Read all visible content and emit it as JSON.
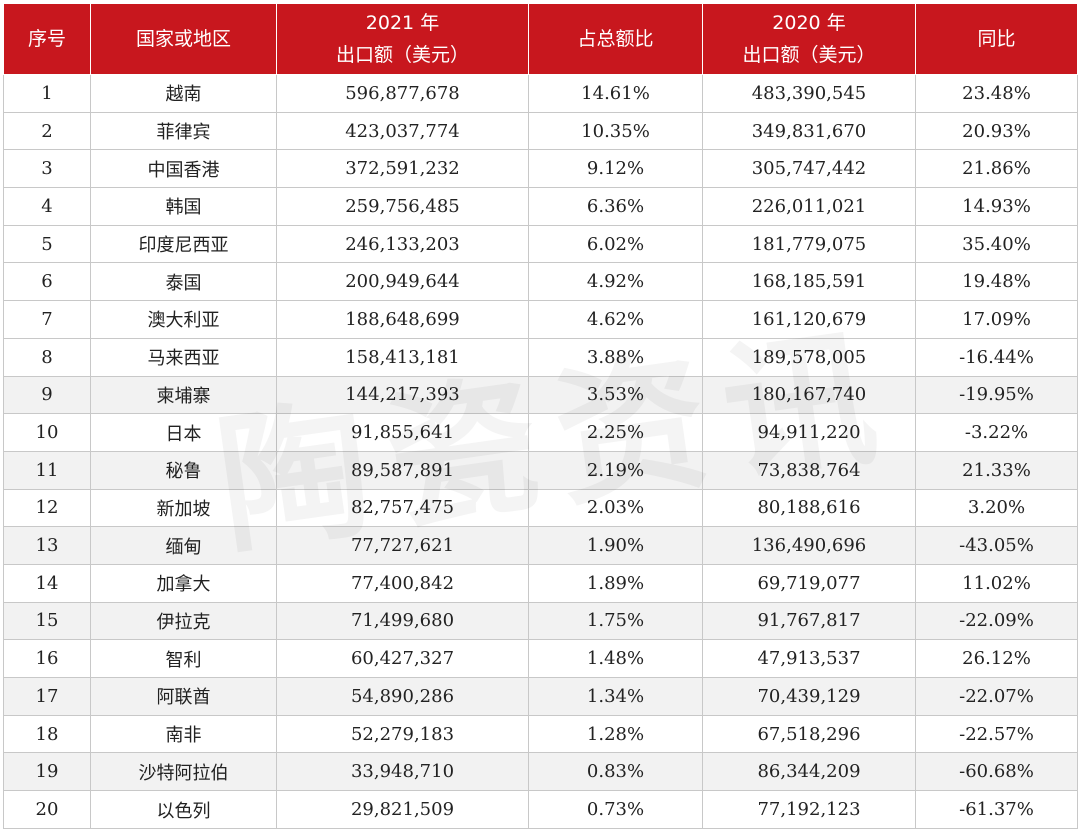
{
  "header": {
    "rank": "序号",
    "country": "国家或地区",
    "export2021_line1": "2021 年",
    "export2021_line2": "出口额（美元）",
    "share": "占总额比",
    "export2020_line1": "2020 年",
    "export2020_line2": "出口额（美元）",
    "yoy": "同比"
  },
  "rows": [
    {
      "rank": "1",
      "country": "越南",
      "export2021": "596,877,678",
      "share": "14.61%",
      "export2020": "483,390,545",
      "yoy": "23.48%"
    },
    {
      "rank": "2",
      "country": "菲律宾",
      "export2021": "423,037,774",
      "share": "10.35%",
      "export2020": "349,831,670",
      "yoy": "20.93%"
    },
    {
      "rank": "3",
      "country": "中国香港",
      "export2021": "372,591,232",
      "share": "9.12%",
      "export2020": "305,747,442",
      "yoy": "21.86%"
    },
    {
      "rank": "4",
      "country": "韩国",
      "export2021": "259,756,485",
      "share": "6.36%",
      "export2020": "226,011,021",
      "yoy": "14.93%"
    },
    {
      "rank": "5",
      "country": "印度尼西亚",
      "export2021": "246,133,203",
      "share": "6.02%",
      "export2020": "181,779,075",
      "yoy": "35.40%"
    },
    {
      "rank": "6",
      "country": "泰国",
      "export2021": "200,949,644",
      "share": "4.92%",
      "export2020": "168,185,591",
      "yoy": "19.48%"
    },
    {
      "rank": "7",
      "country": "澳大利亚",
      "export2021": "188,648,699",
      "share": "4.62%",
      "export2020": "161,120,679",
      "yoy": "17.09%"
    },
    {
      "rank": "8",
      "country": "马来西亚",
      "export2021": "158,413,181",
      "share": "3.88%",
      "export2020": "189,578,005",
      "yoy": "-16.44%"
    },
    {
      "rank": "9",
      "country": "柬埔寨",
      "export2021": "144,217,393",
      "share": "3.53%",
      "export2020": "180,167,740",
      "yoy": "-19.95%"
    },
    {
      "rank": "10",
      "country": "日本",
      "export2021": "91,855,641",
      "share": "2.25%",
      "export2020": "94,911,220",
      "yoy": "-3.22%"
    },
    {
      "rank": "11",
      "country": "秘鲁",
      "export2021": "89,587,891",
      "share": "2.19%",
      "export2020": "73,838,764",
      "yoy": "21.33%"
    },
    {
      "rank": "12",
      "country": "新加坡",
      "export2021": "82,757,475",
      "share": "2.03%",
      "export2020": "80,188,616",
      "yoy": "3.20%"
    },
    {
      "rank": "13",
      "country": "缅甸",
      "export2021": "77,727,621",
      "share": "1.90%",
      "export2020": "136,490,696",
      "yoy": "-43.05%"
    },
    {
      "rank": "14",
      "country": "加拿大",
      "export2021": "77,400,842",
      "share": "1.89%",
      "export2020": "69,719,077",
      "yoy": "11.02%"
    },
    {
      "rank": "15",
      "country": "伊拉克",
      "export2021": "71,499,680",
      "share": "1.75%",
      "export2020": "91,767,817",
      "yoy": "-22.09%"
    },
    {
      "rank": "16",
      "country": "智利",
      "export2021": "60,427,327",
      "share": "1.48%",
      "export2020": "47,913,537",
      "yoy": "26.12%"
    },
    {
      "rank": "17",
      "country": "阿联酋",
      "export2021": "54,890,286",
      "share": "1.34%",
      "export2020": "70,439,129",
      "yoy": "-22.07%"
    },
    {
      "rank": "18",
      "country": "南非",
      "export2021": "52,279,183",
      "share": "1.28%",
      "export2020": "67,518,296",
      "yoy": "-22.57%"
    },
    {
      "rank": "19",
      "country": "沙特阿拉伯",
      "export2021": "33,948,710",
      "share": "0.83%",
      "export2020": "86,344,209",
      "yoy": "-60.68%"
    },
    {
      "rank": "20",
      "country": "以色列",
      "export2021": "29,821,509",
      "share": "0.73%",
      "export2020": "77,192,123",
      "yoy": "-61.37%"
    }
  ],
  "watermark": "陶瓷资讯"
}
